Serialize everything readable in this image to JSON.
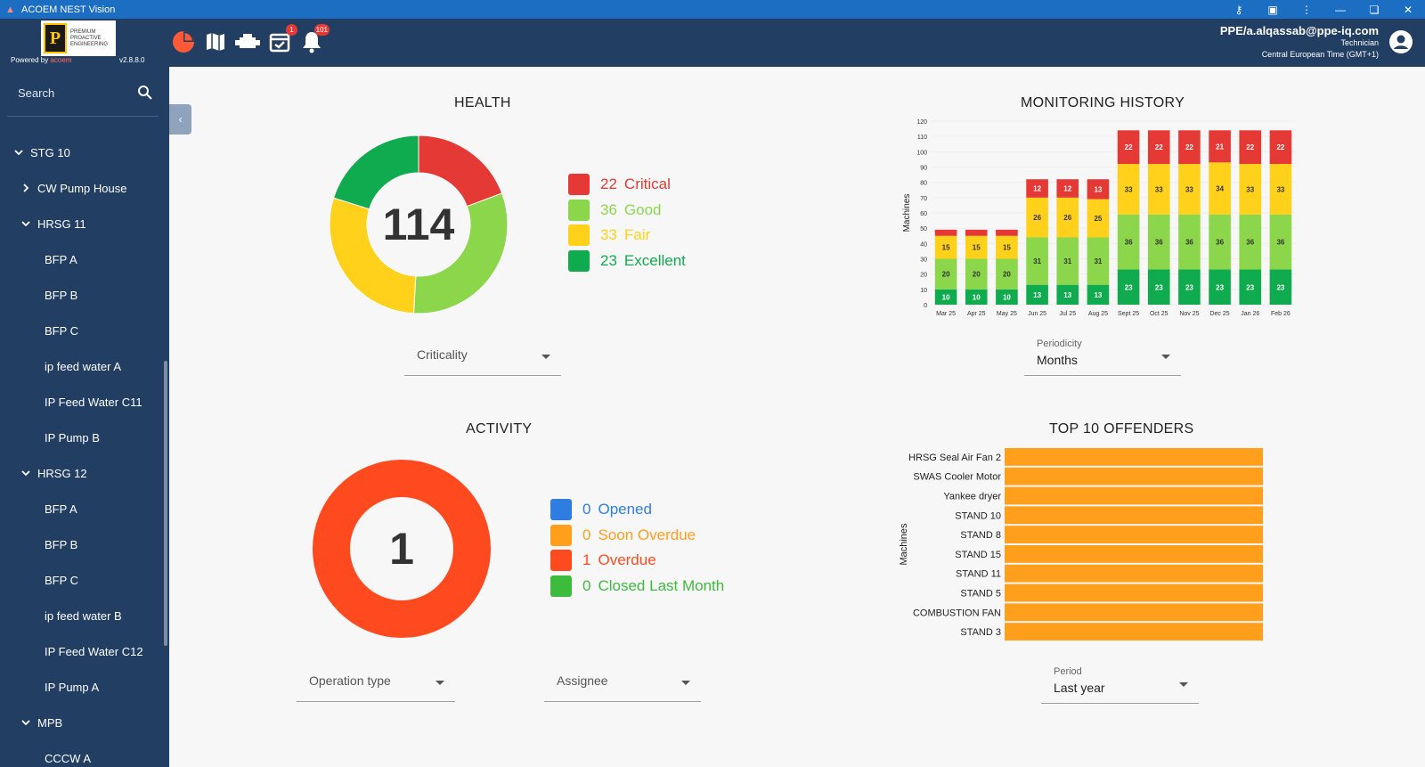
{
  "window": {
    "title": "ACOEM NEST Vision"
  },
  "header": {
    "logo_text": "PREMIUM PROACTIVE ENGINEERING",
    "powered_by": "Powered by",
    "powered_brand": "acoem",
    "version": "v2.8.8.0",
    "task_badge": "1",
    "alert_badge": "101",
    "user_email": "PPE/a.alqassab@ppe-iq.com",
    "user_role": "Technician",
    "timezone": "Central European Time (GMT+1)"
  },
  "sidebar": {
    "search_placeholder": "Search",
    "items": [
      {
        "label": "STG 10",
        "level": 0,
        "chevron": "down"
      },
      {
        "label": "CW Pump House",
        "level": 1,
        "chevron": "right"
      },
      {
        "label": "HRSG 11",
        "level": 1,
        "chevron": "down"
      },
      {
        "label": "BFP A",
        "level": 2,
        "chevron": ""
      },
      {
        "label": "BFP B",
        "level": 2,
        "chevron": ""
      },
      {
        "label": "BFP C",
        "level": 2,
        "chevron": ""
      },
      {
        "label": "ip feed water A",
        "level": 2,
        "chevron": ""
      },
      {
        "label": "IP Feed Water C11",
        "level": 2,
        "chevron": ""
      },
      {
        "label": "IP Pump B",
        "level": 2,
        "chevron": ""
      },
      {
        "label": "HRSG 12",
        "level": 1,
        "chevron": "down"
      },
      {
        "label": "BFP A",
        "level": 2,
        "chevron": ""
      },
      {
        "label": "BFP B",
        "level": 2,
        "chevron": ""
      },
      {
        "label": "BFP C",
        "level": 2,
        "chevron": ""
      },
      {
        "label": "ip feed water B",
        "level": 2,
        "chevron": ""
      },
      {
        "label": "IP Feed Water C12",
        "level": 2,
        "chevron": ""
      },
      {
        "label": "IP Pump A",
        "level": 2,
        "chevron": ""
      },
      {
        "label": "MPB",
        "level": 1,
        "chevron": "down"
      },
      {
        "label": "CCCW A",
        "level": 2,
        "chevron": ""
      }
    ]
  },
  "health": {
    "title": "HEALTH",
    "total": "114",
    "legend": [
      {
        "value": "22",
        "label": "Critical",
        "color": "#e53935"
      },
      {
        "value": "36",
        "label": "Good",
        "color": "#8bd64a"
      },
      {
        "value": "33",
        "label": "Fair",
        "color": "#ffd11a"
      },
      {
        "value": "23",
        "label": "Excellent",
        "color": "#10aa4f"
      }
    ],
    "filter_label": "Criticality"
  },
  "monitoring": {
    "title": "MONITORING HISTORY",
    "periodicity_label": "Periodicity",
    "periodicity_value": "Months"
  },
  "activity": {
    "title": "ACTIVITY",
    "total": "1",
    "legend": [
      {
        "value": "0",
        "label": "Opened",
        "color": "#2f7de1"
      },
      {
        "value": "0",
        "label": "Soon Overdue",
        "color": "#ff9f1c"
      },
      {
        "value": "1",
        "label": "Overdue",
        "color": "#ff4a1f"
      },
      {
        "value": "0",
        "label": "Closed Last Month",
        "color": "#3dbb3d"
      }
    ],
    "operation_label": "Operation type",
    "assignee_label": "Assignee"
  },
  "offenders": {
    "title": "TOP 10 OFFENDERS",
    "period_label": "Period",
    "period_value": "Last year"
  },
  "chart_data": [
    {
      "type": "pie",
      "title": "HEALTH",
      "categories": [
        "Critical",
        "Good",
        "Fair",
        "Excellent"
      ],
      "values": [
        22,
        36,
        33,
        23
      ],
      "colors": [
        "#e53935",
        "#8bd64a",
        "#ffd11a",
        "#10aa4f"
      ]
    },
    {
      "type": "bar",
      "title": "MONITORING HISTORY",
      "ylabel": "Machines",
      "ylim": [
        0,
        120
      ],
      "yticks": [
        0,
        10,
        20,
        30,
        40,
        50,
        60,
        70,
        80,
        90,
        100,
        110,
        120
      ],
      "categories": [
        "Mar 25",
        "Apr 25",
        "May 25",
        "Jun 25",
        "Jul 25",
        "Aug 25",
        "Sept 25",
        "Oct 25",
        "Nov 25",
        "Dec 25",
        "Jan 26",
        "Feb 26"
      ],
      "series": [
        {
          "name": "Excellent",
          "color": "#10aa4f",
          "values": [
            10,
            10,
            10,
            13,
            13,
            13,
            23,
            23,
            23,
            23,
            23,
            23
          ]
        },
        {
          "name": "Good",
          "color": "#8bd64a",
          "values": [
            20,
            20,
            20,
            31,
            31,
            31,
            36,
            36,
            36,
            36,
            36,
            36
          ]
        },
        {
          "name": "Fair",
          "color": "#ffd11a",
          "values": [
            15,
            15,
            15,
            26,
            26,
            25,
            33,
            33,
            33,
            34,
            33,
            33
          ]
        },
        {
          "name": "Critical",
          "color": "#e53935",
          "values": [
            4,
            4,
            4,
            12,
            12,
            13,
            22,
            22,
            22,
            21,
            22,
            22
          ],
          "label_values": [
            "",
            "",
            "",
            "12",
            "12",
            "13",
            "22",
            "22",
            "22",
            "21",
            "22",
            "22"
          ]
        }
      ]
    },
    {
      "type": "pie",
      "title": "ACTIVITY",
      "categories": [
        "Opened",
        "Soon Overdue",
        "Overdue",
        "Closed Last Month"
      ],
      "values": [
        0,
        0,
        1,
        0
      ],
      "colors": [
        "#2f7de1",
        "#ff9f1c",
        "#ff4a1f",
        "#3dbb3d"
      ]
    },
    {
      "type": "bar",
      "orientation": "horizontal",
      "title": "TOP 10 OFFENDERS",
      "ylabel": "Machines",
      "color": "#ff9f1c",
      "categories": [
        "HRSG Seal Air Fan 2",
        "SWAS Cooler Motor",
        "Yankee dryer",
        "STAND 10",
        "STAND 8",
        "STAND 15",
        "STAND 11",
        "STAND 5",
        "COMBUSTION FAN",
        "STAND 3"
      ],
      "values": [
        1,
        1,
        1,
        1,
        1,
        1,
        1,
        1,
        1,
        1
      ]
    }
  ]
}
